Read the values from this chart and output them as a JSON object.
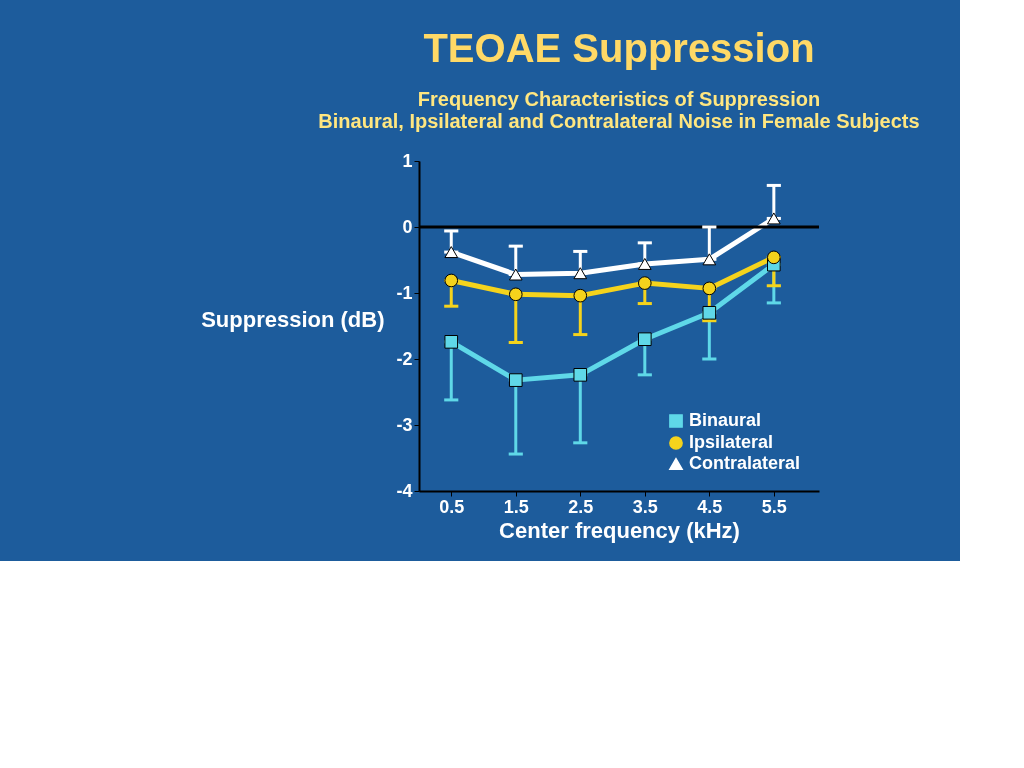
{
  "chart_data": {
    "type": "line",
    "title": "TEOAE Suppression",
    "subtitle": "Frequency Characteristics of Suppression",
    "annotations": [
      "Binaural, Ipsilateral and Contralateral Noise in Female Subjects"
    ],
    "xlabel": "Center frequency (kHz)",
    "ylabel": "Suppression (dB)",
    "x": [
      0.5,
      1.5,
      2.5,
      3.5,
      4.5,
      5.5
    ],
    "series": [
      {
        "name": "Binaural",
        "color": "#5fd8e8",
        "marker": "square",
        "values": [
          -1.74,
          -2.32,
          -2.24,
          -1.7,
          -1.3,
          -0.57
        ],
        "errors": [
          [
            -2.62,
            -1.74
          ],
          [
            -3.44,
            -2.32
          ],
          [
            -3.27,
            -2.24
          ],
          [
            -2.24,
            -1.7
          ],
          [
            -2.0,
            -1.3
          ],
          [
            -1.15,
            -0.57
          ]
        ]
      },
      {
        "name": "Ipsilateral",
        "color": "#f5d31c",
        "marker": "circle",
        "values": [
          -0.81,
          -1.02,
          -1.04,
          -0.85,
          -0.93,
          -0.46
        ],
        "errors": [
          [
            -1.2,
            -0.81
          ],
          [
            -1.75,
            -1.02
          ],
          [
            -1.63,
            -1.04
          ],
          [
            -1.16,
            -0.85
          ],
          [
            -1.42,
            -0.93
          ],
          [
            -0.89,
            -0.46
          ]
        ]
      },
      {
        "name": "Contralateral",
        "color": "#ffffff",
        "marker": "triangle",
        "values": [
          -0.38,
          -0.72,
          -0.7,
          -0.56,
          -0.49,
          0.13
        ],
        "errors": [
          [
            -0.38,
            -0.06
          ],
          [
            -0.72,
            -0.29
          ],
          [
            -0.7,
            -0.37
          ],
          [
            -0.56,
            -0.24
          ],
          [
            -0.49,
            0.0
          ],
          [
            0.13,
            0.63
          ]
        ]
      }
    ],
    "xlim": [
      0,
      6.2
    ],
    "xticks": [
      0.5,
      1.5,
      2.5,
      3.5,
      4.5,
      5.5
    ],
    "ylim": [
      -4,
      1
    ],
    "yticks": [
      {
        "value": -4,
        "label": "-4"
      },
      {
        "value": -3,
        "label": "-3"
      },
      {
        "value": -2,
        "label": "-2"
      },
      {
        "value": -1,
        "label": "-1"
      },
      {
        "value": 0,
        "label": "0"
      },
      {
        "value": 1,
        "label": "1"
      }
    ],
    "ref_lines": [
      {
        "axis": "y",
        "value": 0,
        "color": "#000000"
      }
    ],
    "grid": false,
    "legend": "bottom right",
    "line_style": "solid"
  }
}
